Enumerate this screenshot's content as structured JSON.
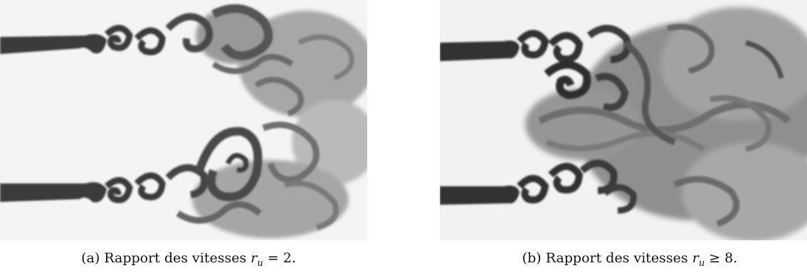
{
  "figures": [
    {
      "id": "a",
      "caption_prefix": "(a) Rapport des vitesses ",
      "caption_var": "r",
      "caption_sub": "u",
      "caption_rel": " = 2."
    },
    {
      "id": "b",
      "caption_prefix": "(b) Rapport des vitesses ",
      "caption_var": "r",
      "caption_sub": "u",
      "caption_rel": " ≥ 8."
    }
  ]
}
